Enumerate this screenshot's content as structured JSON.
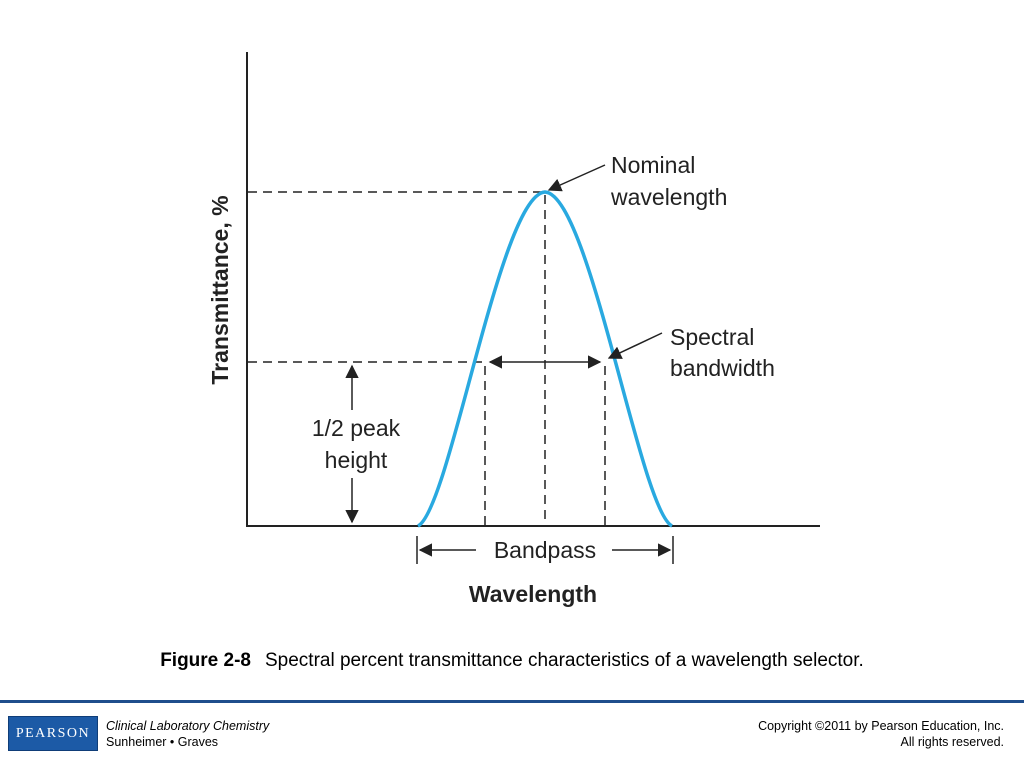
{
  "figure": {
    "y_axis_label": "Transmittance, %",
    "x_axis_label": "Wavelength",
    "annotations": {
      "nominal_line1": "Nominal",
      "nominal_line2": "wavelength",
      "spectral_line1": "Spectral",
      "spectral_line2": "bandwidth",
      "half_line1": "1/2 peak",
      "half_line2": "height",
      "bandpass": "Bandpass"
    },
    "curve_color": "#29a9e0"
  },
  "caption": {
    "number": "Figure 2-8",
    "text": "Spectral percent transmittance characteristics of a wavelength selector."
  },
  "footer": {
    "logo": "PEARSON",
    "book_title": "Clinical Laboratory Chemistry",
    "authors": "Sunheimer • Graves",
    "copyright_line1": "Copyright ©2011 by Pearson Education, Inc.",
    "copyright_line2": "All rights reserved."
  }
}
